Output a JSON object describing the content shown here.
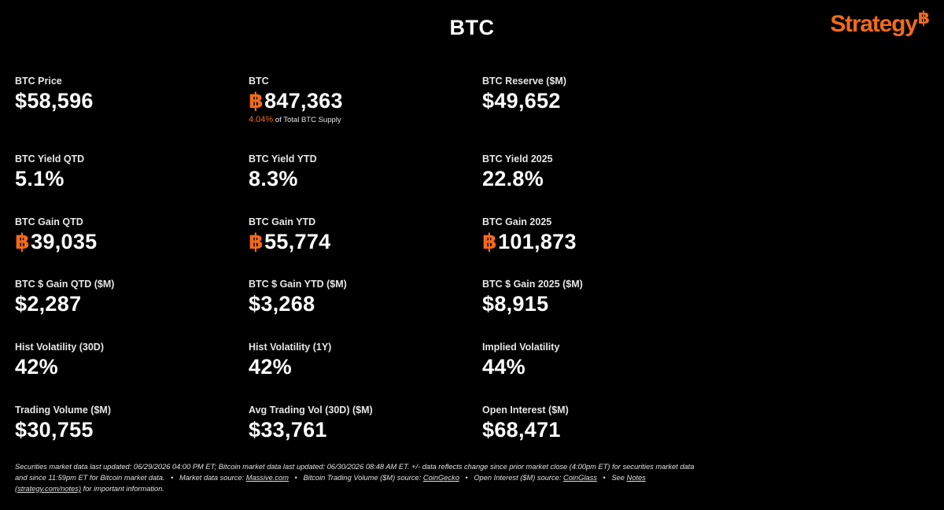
{
  "page": {
    "title": "BTC",
    "brand": "Strategy",
    "brand_mark": "฿"
  },
  "colors": {
    "background": "#000000",
    "accent": "#f26a1b",
    "text": "#ffffff"
  },
  "btc_symbol": "฿",
  "metrics": {
    "btc_price": {
      "label": "BTC Price",
      "value": "$58,596"
    },
    "btc_holdings": {
      "label": "BTC",
      "value": "847,363",
      "sub_pct": "4.04%",
      "sub_text": "of Total BTC Supply"
    },
    "btc_reserve": {
      "label": "BTC Reserve ($M)",
      "value": "$49,652"
    },
    "btc_yield_qtd": {
      "label": "BTC Yield QTD",
      "value": "5.1%"
    },
    "btc_yield_ytd": {
      "label": "BTC Yield YTD",
      "value": "8.3%"
    },
    "btc_yield_2025": {
      "label": "BTC Yield 2025",
      "value": "22.8%"
    },
    "btc_gain_qtd": {
      "label": "BTC Gain QTD",
      "value": "39,035"
    },
    "btc_gain_ytd": {
      "label": "BTC Gain YTD",
      "value": "55,774"
    },
    "btc_gain_2025": {
      "label": "BTC Gain 2025",
      "value": "101,873"
    },
    "btc_usd_gain_qtd": {
      "label": "BTC $ Gain QTD ($M)",
      "value": "$2,287"
    },
    "btc_usd_gain_ytd": {
      "label": "BTC $ Gain YTD ($M)",
      "value": "$3,268"
    },
    "btc_usd_gain_2025": {
      "label": "BTC $ Gain 2025 ($M)",
      "value": "$8,915"
    },
    "hist_vol_30d": {
      "label": "Hist Volatility (30D)",
      "value": "42%"
    },
    "hist_vol_1y": {
      "label": "Hist Volatility (1Y)",
      "value": "42%"
    },
    "implied_vol": {
      "label": "Implied Volatility",
      "value": "44%"
    },
    "trading_volume": {
      "label": "Trading Volume ($M)",
      "value": "$30,755"
    },
    "avg_trading_vol_30d": {
      "label": "Avg Trading Vol (30D) ($M)",
      "value": "$33,761"
    },
    "open_interest": {
      "label": "Open Interest ($M)",
      "value": "$68,471"
    }
  },
  "footer": {
    "part1": "Securities market data last updated: 06/29/2026 04:00 PM ET; Bitcoin market data last updated: 06/30/2026 08:48 AM ET. +/- data reflects change since prior market close (4:00pm ET) for securities market data and since 11:59pm ET for Bitcoin market data.",
    "bullet": "•",
    "part2": "Market data source:",
    "link_massive": "Massive.com",
    "part3": "Bitcoin Trading Volume ($M) source:",
    "link_coingecko": "CoinGecko",
    "part4": "Open Interest ($M) source:",
    "link_coinglass": "CoinGlass",
    "part5": "See",
    "link_notes": "Notes (strategy.com/notes)",
    "part6": "for important information."
  }
}
